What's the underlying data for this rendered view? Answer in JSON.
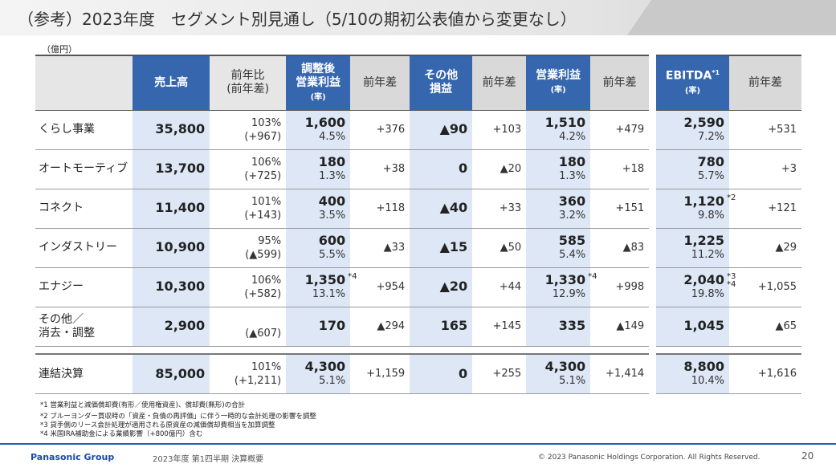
{
  "title": "（参考）2023年度　セグメント別見通し（5/10の期初公表値から変更なし）",
  "unit": "（億円）",
  "headers": {
    "sales": "売上高",
    "yoy": "前年比\n(前年差)",
    "adj_op": "調整後\n営業利益",
    "rate": "(率)",
    "diff": "前年差",
    "other": "その他\n損益",
    "op": "営業利益",
    "ebitda": "EBITDA",
    "ebitda_note": "*1"
  },
  "rows": [
    {
      "name": "くらし事業",
      "sales": "35,800",
      "yoy": "103%",
      "yoy_diff": "(+967)",
      "adj_op": "1,600",
      "adj_rate": "4.5%",
      "adj_note": "",
      "adj_diff": "+376",
      "other": "▲90",
      "other_diff": "+103",
      "op": "1,510",
      "op_rate": "4.2%",
      "op_note": "",
      "op_diff": "+479",
      "ebitda": "2,590",
      "ebitda_rate": "7.2%",
      "ebitda_note": "",
      "ebitda_diff": "+531"
    },
    {
      "name": "オートモーティブ",
      "sales": "13,700",
      "yoy": "106%",
      "yoy_diff": "(+725)",
      "adj_op": "180",
      "adj_rate": "1.3%",
      "adj_note": "",
      "adj_diff": "+38",
      "other": "0",
      "other_diff": "▲20",
      "op": "180",
      "op_rate": "1.3%",
      "op_note": "",
      "op_diff": "+18",
      "ebitda": "780",
      "ebitda_rate": "5.7%",
      "ebitda_note": "",
      "ebitda_diff": "+3"
    },
    {
      "name": "コネクト",
      "sales": "11,400",
      "yoy": "101%",
      "yoy_diff": "(+143)",
      "adj_op": "400",
      "adj_rate": "3.5%",
      "adj_note": "",
      "adj_diff": "+118",
      "other": "▲40",
      "other_diff": "+33",
      "op": "360",
      "op_rate": "3.2%",
      "op_note": "",
      "op_diff": "+151",
      "ebitda": "1,120",
      "ebitda_rate": "9.8%",
      "ebitda_note": "*2",
      "ebitda_diff": "+121"
    },
    {
      "name": "インダストリー",
      "sales": "10,900",
      "yoy": "95%",
      "yoy_diff": "(▲599)",
      "adj_op": "600",
      "adj_rate": "5.5%",
      "adj_note": "",
      "adj_diff": "▲33",
      "other": "▲15",
      "other_diff": "▲50",
      "op": "585",
      "op_rate": "5.4%",
      "op_note": "",
      "op_diff": "▲83",
      "ebitda": "1,225",
      "ebitda_rate": "11.2%",
      "ebitda_note": "",
      "ebitda_diff": "▲29"
    },
    {
      "name": "エナジー",
      "sales": "10,300",
      "yoy": "106%",
      "yoy_diff": "(+582)",
      "adj_op": "1,350",
      "adj_rate": "13.1%",
      "adj_note": "*4",
      "adj_diff": "+954",
      "other": "▲20",
      "other_diff": "+44",
      "op": "1,330",
      "op_rate": "12.9%",
      "op_note": "*4",
      "op_diff": "+998",
      "ebitda": "2,040",
      "ebitda_rate": "19.8%",
      "ebitda_note": "*3\n*4",
      "ebitda_diff": "+1,055"
    },
    {
      "name": "その他／\n消去・調整",
      "sales": "2,900",
      "yoy": "",
      "yoy_diff": "(▲607)",
      "adj_op": "170",
      "adj_rate": "",
      "adj_note": "",
      "adj_diff": "▲294",
      "other": "165",
      "other_diff": "+145",
      "op": "335",
      "op_rate": "",
      "op_note": "",
      "op_diff": "▲149",
      "ebitda": "1,045",
      "ebitda_rate": "",
      "ebitda_note": "",
      "ebitda_diff": "▲65"
    },
    {
      "name": "連結決算",
      "sales": "85,000",
      "yoy": "101%",
      "yoy_diff": "(+1,211)",
      "adj_op": "4,300",
      "adj_rate": "5.1%",
      "adj_note": "",
      "adj_diff": "+1,159",
      "other": "0",
      "other_diff": "+255",
      "op": "4,300",
      "op_rate": "5.1%",
      "op_note": "",
      "op_diff": "+1,414",
      "ebitda": "8,800",
      "ebitda_rate": "10.4%",
      "ebitda_note": "",
      "ebitda_diff": "+1,616"
    }
  ],
  "footnotes": [
    "*1  営業利益と減価償却費(有形／使用権資産)、償却費(無形)の合計",
    "*2  ブルーヨンダー買収時の「資産・負債の再評価」に伴う一時的な会計処理の影響を調整",
    "*3  貸手側のリース会計処理が適用される原資産の減価償却費相当を加算調整",
    "*4  米国IRA補助金による業績影響（+800億円）含む"
  ],
  "footer": {
    "brand": "Panasonic Group",
    "subtitle": "2023年度 第1四半期  決算概要",
    "copyright": "© 2023 Panasonic Holdings Corporation. All Rights Reserved.",
    "page": "20"
  },
  "colors": {
    "header_blue": "#3566ae",
    "column_blue": "#dde7f5",
    "footer_line": "#2a5db0"
  }
}
